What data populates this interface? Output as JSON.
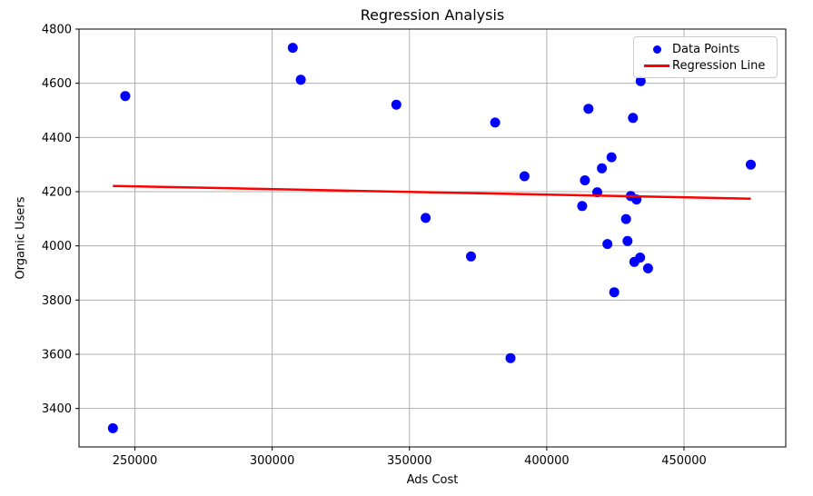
{
  "figure": {
    "kind": "matplotlib-style scatter plot with regression line"
  },
  "chart_data": {
    "type": "scatter",
    "title": "Regression Analysis",
    "xlabel": "Ads Cost",
    "ylabel": "Organic Users",
    "x_ticks": [
      "250000",
      "300000",
      "350000",
      "400000",
      "450000"
    ],
    "x_tick_values": [
      250000,
      300000,
      350000,
      400000,
      450000
    ],
    "y_ticks": [
      "3400",
      "3600",
      "3800",
      "4000",
      "4200",
      "4400",
      "4600",
      "4800"
    ],
    "y_tick_values": [
      3400,
      3600,
      3800,
      4000,
      4200,
      4400,
      4600,
      4800
    ],
    "xlim": [
      229650,
      487050
    ],
    "ylim": [
      3258,
      4800
    ],
    "grid": true,
    "legend_position": "upper-right",
    "legend": {
      "items": [
        {
          "label": "Data Points",
          "marker": "dot",
          "color": "#0000ff"
        },
        {
          "label": "Regression Line",
          "marker": "line",
          "color": "#ff0000"
        }
      ]
    },
    "series": [
      {
        "name": "Data Points",
        "type": "scatter",
        "color": "#0000ff",
        "points": [
          [
            242000,
            3327
          ],
          [
            246500,
            4553
          ],
          [
            307500,
            4731
          ],
          [
            310400,
            4613
          ],
          [
            345200,
            4521
          ],
          [
            355900,
            4103
          ],
          [
            372400,
            3961
          ],
          [
            381200,
            4455
          ],
          [
            386800,
            3586
          ],
          [
            391900,
            4257
          ],
          [
            412900,
            4147
          ],
          [
            413900,
            4242
          ],
          [
            415200,
            4506
          ],
          [
            418400,
            4198
          ],
          [
            420100,
            4286
          ],
          [
            422100,
            4007
          ],
          [
            423600,
            4327
          ],
          [
            424600,
            3829
          ],
          [
            428900,
            4099
          ],
          [
            429400,
            4018
          ],
          [
            430600,
            4184
          ],
          [
            431400,
            4472
          ],
          [
            431900,
            3941
          ],
          [
            432700,
            4171
          ],
          [
            434000,
            3957
          ],
          [
            434200,
            4608
          ],
          [
            436900,
            3917
          ],
          [
            474300,
            4300
          ]
        ]
      },
      {
        "name": "Regression Line",
        "type": "line",
        "color": "#ff0000",
        "points": [
          [
            242000,
            4221
          ],
          [
            474300,
            4174
          ]
        ]
      }
    ],
    "colors": {
      "scatter": "#0000ff",
      "regression": "#ff0000",
      "grid": "#b0b0b0",
      "spine": "#000000",
      "background": "#ffffff"
    }
  }
}
